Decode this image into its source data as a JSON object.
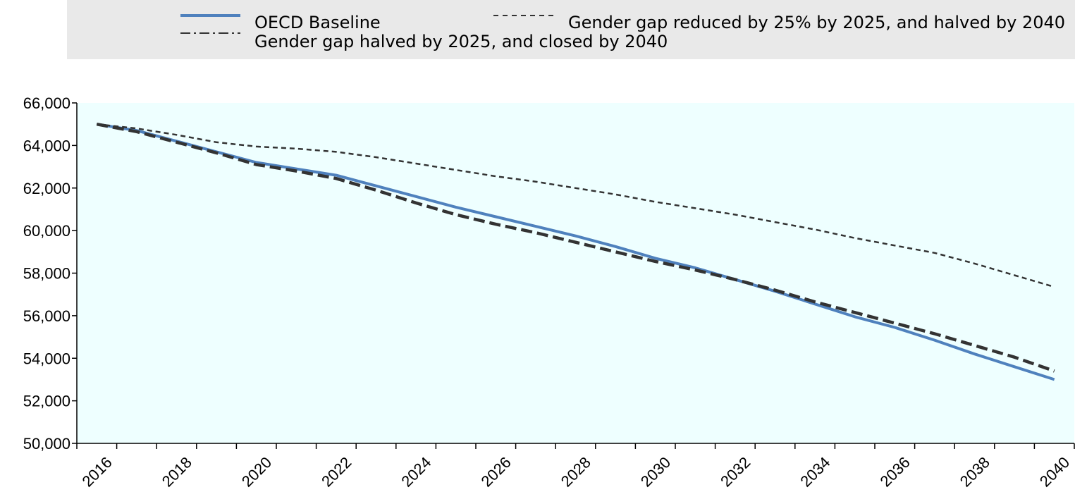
{
  "chart_data": {
    "type": "line",
    "title": "",
    "xlabel": "",
    "ylabel": "",
    "x": [
      2016,
      2017,
      2018,
      2019,
      2020,
      2021,
      2022,
      2023,
      2024,
      2025,
      2026,
      2027,
      2028,
      2029,
      2030,
      2031,
      2032,
      2033,
      2034,
      2035,
      2036,
      2037,
      2038,
      2039,
      2040
    ],
    "xticks": [
      "2016",
      "2018",
      "2020",
      "2022",
      "2024",
      "2026",
      "2028",
      "2030",
      "2032",
      "2034",
      "2036",
      "2038",
      "2040"
    ],
    "ylim": [
      50000,
      66000
    ],
    "yticks": [
      "50,000",
      "52,000",
      "54,000",
      "56,000",
      "58,000",
      "60,000",
      "62,000",
      "64,000",
      "66,000"
    ],
    "yticks_values": [
      50000,
      52000,
      54000,
      56000,
      58000,
      60000,
      62000,
      64000,
      66000
    ],
    "grid": false,
    "plot_background": "#EEFFFF",
    "legend_background": "#E9E9E9",
    "legend_position": "top",
    "series": [
      {
        "name": "OECD Baseline",
        "style": "solid",
        "color": "#4F81BD",
        "values": [
          65000,
          64700,
          64200,
          63700,
          63200,
          62900,
          62600,
          62100,
          61600,
          61100,
          60650,
          60200,
          59750,
          59250,
          58700,
          58250,
          57700,
          57150,
          56550,
          55950,
          55450,
          54850,
          54200,
          53600,
          53000
        ]
      },
      {
        "name": "Gender gap reduced by 25% by 2025, and halved by 2040",
        "style": "dashed",
        "color": "#333333",
        "values": [
          65000,
          64800,
          64500,
          64150,
          63950,
          63850,
          63700,
          63450,
          63150,
          62850,
          62550,
          62300,
          62000,
          61700,
          61350,
          61050,
          60750,
          60400,
          60050,
          59650,
          59300,
          58950,
          58450,
          57900,
          57350
        ]
      },
      {
        "name": "Gender gap halved by 2025, and closed by 2040",
        "style": "dashdot",
        "color": "#333333",
        "values": [
          65000,
          64650,
          64150,
          63650,
          63100,
          62800,
          62450,
          61900,
          61300,
          60750,
          60300,
          59900,
          59450,
          59000,
          58550,
          58150,
          57700,
          57200,
          56650,
          56150,
          55650,
          55150,
          54600,
          54050,
          53400
        ]
      }
    ]
  }
}
